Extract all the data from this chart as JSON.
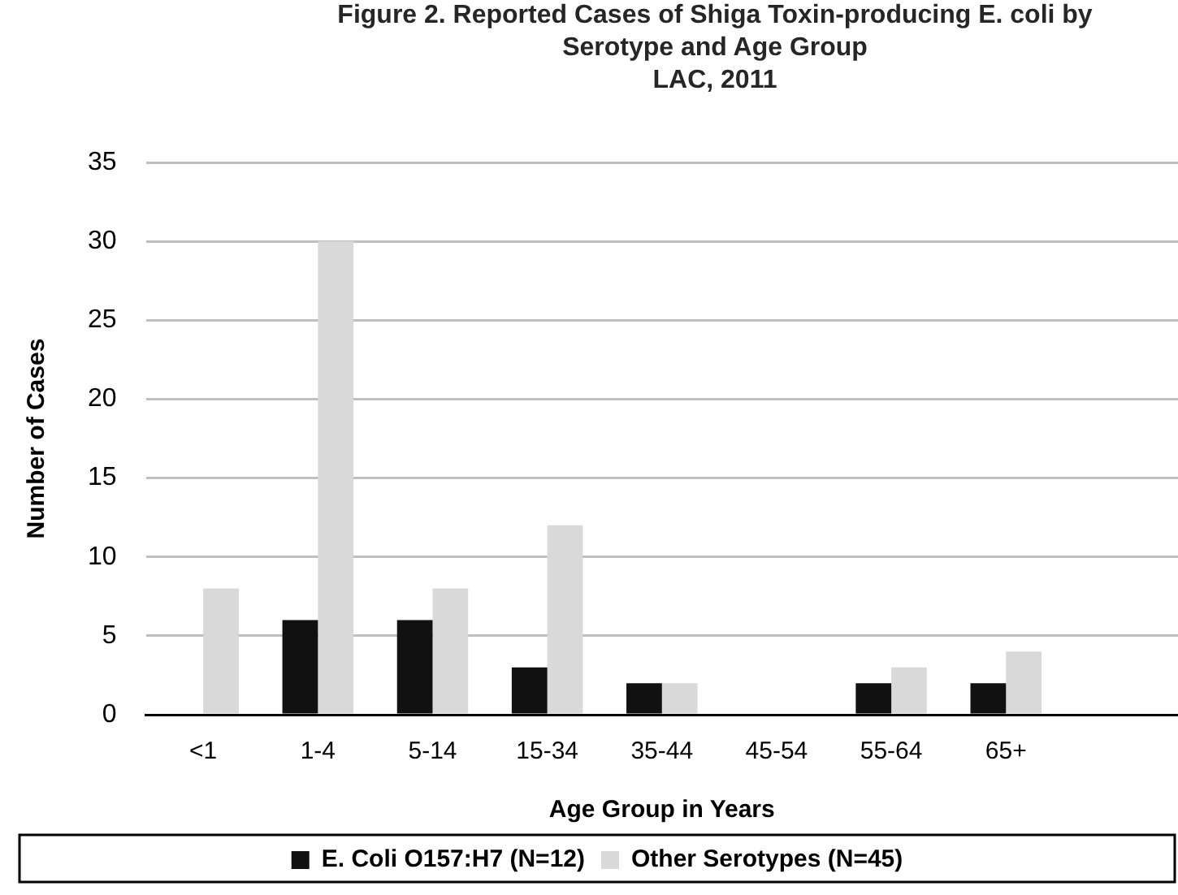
{
  "chart_data": {
    "type": "bar",
    "title": "Figure 2. Reported Cases of Shiga Toxin-producing E. coli by Serotype and Age Group",
    "subtitle": "LAC, 2011",
    "xlabel": "Age Group in Years",
    "ylabel": "Number of Cases",
    "categories": [
      "<1",
      "1-4",
      "5-14",
      "15-34",
      "35-44",
      "45-54",
      "55-64",
      "65+",
      null
    ],
    "series": [
      {
        "name": "E. Coli O157:H7 (N=12)",
        "color": "#111111",
        "values": [
          0,
          6,
          6,
          3,
          2,
          0,
          2,
          2,
          null
        ]
      },
      {
        "name": "Other Serotypes (N=45)",
        "color": "#d9d9d9",
        "values": [
          8,
          30,
          8,
          12,
          2,
          0,
          3,
          4,
          null
        ]
      }
    ],
    "ylim": [
      0,
      35
    ],
    "yticks": [
      0,
      5,
      10,
      15,
      20,
      25,
      30,
      35
    ],
    "grid": "y",
    "legend": "bottom"
  }
}
